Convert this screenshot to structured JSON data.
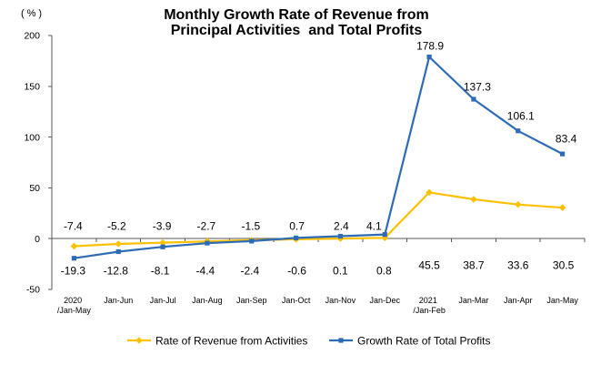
{
  "chart_data": {
    "type": "line",
    "title": [
      "Monthly Growth Rate of Revenue from",
      "Principal Activities  and Total Profits"
    ],
    "ylabel": "(%)",
    "categories": [
      "2020 /Jan-May",
      "Jan-Jun",
      "Jan-Jul",
      "Jan-Aug",
      "Jan-Sep",
      "Jan-Oct",
      "Jan-Nov",
      "Jan-Dec",
      "2021 /Jan-Feb",
      "Jan-Mar",
      "Jan-Apr",
      "Jan-May"
    ],
    "ylim": [
      -50,
      200
    ],
    "yticks": [
      200,
      150,
      100,
      50,
      0,
      -50
    ],
    "grid": false,
    "legend": "bottom",
    "series": [
      {
        "name": "Rate of Revenue from Activities",
        "color": "#FFC000",
        "marker": "diamond",
        "values": [
          -7.4,
          -5.2,
          -3.9,
          -2.7,
          -1.5,
          -0.6,
          0.1,
          0.8,
          45.5,
          38.7,
          33.6,
          30.5
        ]
      },
      {
        "name": "Growth Rate of Total Profits",
        "color": "#2E6BB5",
        "marker": "square",
        "values": [
          -19.3,
          -12.8,
          -8.1,
          -4.4,
          -2.4,
          0.7,
          2.4,
          4.1,
          178.9,
          137.3,
          106.1,
          83.4
        ]
      }
    ]
  }
}
